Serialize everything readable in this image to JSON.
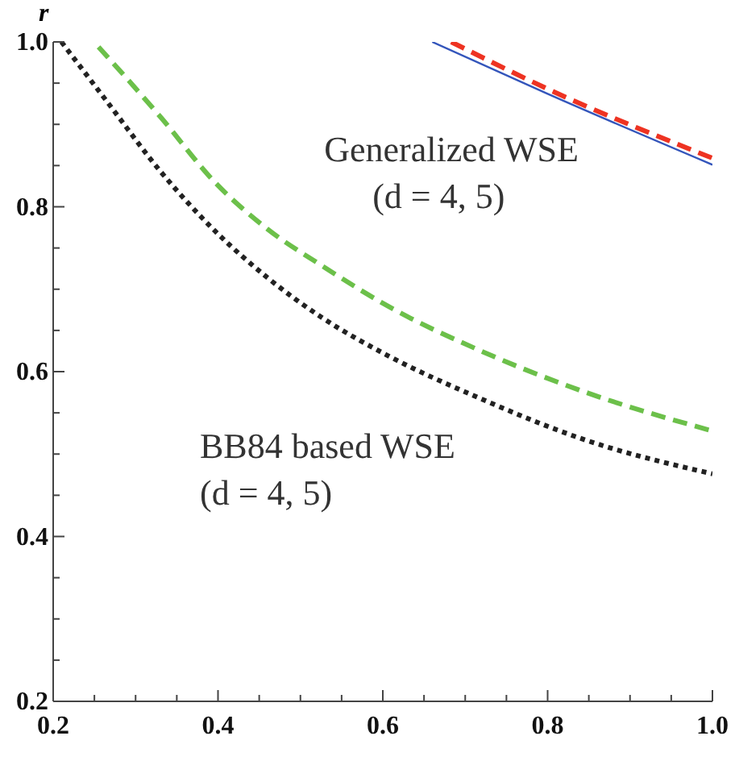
{
  "chart_data": {
    "type": "line",
    "ylabel": "r",
    "xlim": [
      0.2,
      1.0
    ],
    "ylim": [
      0.2,
      1.0
    ],
    "xticks": [
      {
        "value": 0.2,
        "label": "0.2"
      },
      {
        "value": 0.25,
        "label": null
      },
      {
        "value": 0.3,
        "label": null
      },
      {
        "value": 0.35,
        "label": null
      },
      {
        "value": 0.4,
        "label": "0.4"
      },
      {
        "value": 0.45,
        "label": null
      },
      {
        "value": 0.5,
        "label": null
      },
      {
        "value": 0.55,
        "label": null
      },
      {
        "value": 0.6,
        "label": "0.6"
      },
      {
        "value": 0.65,
        "label": null
      },
      {
        "value": 0.7,
        "label": null
      },
      {
        "value": 0.75,
        "label": null
      },
      {
        "value": 0.8,
        "label": "0.8"
      },
      {
        "value": 0.85,
        "label": null
      },
      {
        "value": 0.9,
        "label": null
      },
      {
        "value": 0.95,
        "label": null
      },
      {
        "value": 1.0,
        "label": "1.0"
      }
    ],
    "yticks": [
      {
        "value": 0.2,
        "label": "0.2"
      },
      {
        "value": 0.25,
        "label": null
      },
      {
        "value": 0.3,
        "label": null
      },
      {
        "value": 0.35,
        "label": null
      },
      {
        "value": 0.4,
        "label": "0.4"
      },
      {
        "value": 0.45,
        "label": null
      },
      {
        "value": 0.5,
        "label": null
      },
      {
        "value": 0.55,
        "label": null
      },
      {
        "value": 0.6,
        "label": "0.6"
      },
      {
        "value": 0.65,
        "label": null
      },
      {
        "value": 0.7,
        "label": null
      },
      {
        "value": 0.75,
        "label": null
      },
      {
        "value": 0.8,
        "label": "0.8"
      },
      {
        "value": 0.85,
        "label": null
      },
      {
        "value": 0.9,
        "label": null
      },
      {
        "value": 0.95,
        "label": null
      },
      {
        "value": 1.0,
        "label": "1.0"
      }
    ],
    "grid": false,
    "legend": false,
    "marker": "none",
    "series": [
      {
        "color": "#222222",
        "line_style": "dotted",
        "x": [
          0.21,
          0.265,
          0.331,
          0.396,
          0.46,
          0.527,
          0.605,
          0.717,
          0.846,
          1.0
        ],
        "values": [
          1.0,
          0.928,
          0.842,
          0.771,
          0.714,
          0.665,
          0.62,
          0.568,
          0.517,
          0.476
        ]
      },
      {
        "color": "#6cc04a",
        "line_style": "dashed",
        "x": [
          0.255,
          0.331,
          0.396,
          0.46,
          0.527,
          0.607,
          0.717,
          0.846,
          1.0
        ],
        "values": [
          0.994,
          0.908,
          0.83,
          0.773,
          0.728,
          0.679,
          0.626,
          0.575,
          0.528
        ]
      },
      {
        "color": "#3355bb",
        "line_style": "solid",
        "x": [
          0.66,
          0.8,
          1.0
        ],
        "values": [
          1.0,
          0.937,
          0.851
        ]
      },
      {
        "color": "#ee3322",
        "line_style": "dashed",
        "x": [
          0.683,
          0.8,
          1.0
        ],
        "values": [
          1.0,
          0.943,
          0.859
        ]
      }
    ],
    "annotations": [
      "Generalized WSE\n(d = 4, 5)",
      "BB84 based WSE\n(d = 4, 5)"
    ]
  }
}
